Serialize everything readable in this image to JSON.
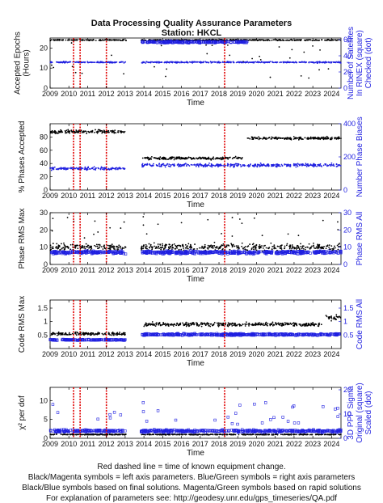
{
  "title_line1": "Data Processing Quality Assurance Parameters",
  "title_line2": "Station: HKCL",
  "footer": [
    "Red dashed line = time of known equipment change.",
    "Black/Magenta symbols = left axis parameters. Blue/Green symbols = right axis parameters",
    "Black/Blue symbols based on final solutions.  Magenta/Green symbols based on rapid solutions",
    "For explanation of parameters see: http://geodesy.unr.edu/gps_timeseries/QA.pdf"
  ],
  "colors": {
    "left": "#000000",
    "right": "#1f1fe0",
    "equipment_change": "#e00000"
  },
  "equipment_changes": [
    2010.25,
    2010.6,
    2012.0,
    2018.3
  ],
  "chart_data": [
    {
      "type": "scatter",
      "xlabel": "Time",
      "xlim": [
        2009,
        2024.5
      ],
      "xticks": [
        2009,
        2010,
        2011,
        2012,
        2013,
        2014,
        2015,
        2016,
        2017,
        2018,
        2019,
        2020,
        2021,
        2022,
        2023,
        2024
      ],
      "ylabel_left": [
        "Accepted Epochs",
        "(Hours)"
      ],
      "ylim_left": [
        0,
        25
      ],
      "yticks_left": [
        0,
        10,
        20
      ],
      "ylabel_right": [
        "Number of Satellites",
        "In RINEX (square)",
        "Checked (dot)"
      ],
      "ylim_right": [
        0,
        62
      ],
      "yticks_right": [
        0,
        20,
        40,
        60
      ],
      "series": [
        {
          "axis": "left",
          "level": 24,
          "spread": 0.4,
          "outliers": "low",
          "outlier_range": [
            5,
            23
          ]
        },
        {
          "axis": "right",
          "level": 32,
          "spread": 1.2
        },
        {
          "axis": "right",
          "level": 57,
          "spread": 1.5,
          "marker": "square",
          "start": 2013.8,
          "end": 2019.5
        }
      ]
    },
    {
      "type": "scatter",
      "xlabel": "Time",
      "xlim": [
        2009,
        2024.5
      ],
      "xticks": [
        2009,
        2010,
        2011,
        2012,
        2013,
        2014,
        2015,
        2016,
        2017,
        2018,
        2019,
        2020,
        2021,
        2022,
        2023,
        2024
      ],
      "ylabel_left": [
        "% Phases Accepted"
      ],
      "ylim_left": [
        0,
        100
      ],
      "yticks_left": [
        0,
        20,
        40,
        60,
        80
      ],
      "ylabel_right": [
        "Number Phase Biases"
      ],
      "ylim_right": [
        0,
        400
      ],
      "yticks_right": [
        0,
        200,
        400
      ],
      "series": [
        {
          "axis": "left",
          "level": 88,
          "spread": 4,
          "start": 2009,
          "end": 2013
        },
        {
          "axis": "left",
          "level": 48,
          "spread": 3,
          "start": 2013.9,
          "end": 2019.3
        },
        {
          "axis": "left",
          "level": 78,
          "spread": 3,
          "start": 2019.5,
          "end": 2024.5
        },
        {
          "axis": "right",
          "level": 130,
          "spread": 12,
          "start": 2009,
          "end": 2013
        },
        {
          "axis": "right",
          "level": 150,
          "spread": 15,
          "start": 2013.9,
          "end": 2024.5
        }
      ]
    },
    {
      "type": "scatter",
      "xlabel": "Time",
      "xlim": [
        2009,
        2024.5
      ],
      "xticks": [
        2009,
        2010,
        2011,
        2012,
        2013,
        2014,
        2015,
        2016,
        2017,
        2018,
        2019,
        2020,
        2021,
        2022,
        2023,
        2024
      ],
      "ylabel_left": [
        "Phase RMS Max"
      ],
      "ylim_left": [
        0,
        30
      ],
      "yticks_left": [
        0,
        10,
        20,
        30
      ],
      "ylabel_right": [
        "Phase RMS All"
      ],
      "ylim_right": [
        0,
        30
      ],
      "yticks_right": [
        0,
        10,
        20,
        30
      ],
      "series": [
        {
          "axis": "left",
          "level": 10,
          "spread": 3,
          "outliers": "high",
          "outlier_range": [
            15,
            28
          ]
        },
        {
          "axis": "right",
          "level": 7,
          "spread": 1.2,
          "marker": "square"
        }
      ]
    },
    {
      "type": "scatter",
      "xlabel": "Time",
      "xlim": [
        2009,
        2024.5
      ],
      "xticks": [
        2009,
        2010,
        2011,
        2012,
        2013,
        2014,
        2015,
        2016,
        2017,
        2018,
        2019,
        2020,
        2021,
        2022,
        2023,
        2024
      ],
      "ylabel_left": [
        "Code RMS Max"
      ],
      "ylim_left": [
        0,
        1.8
      ],
      "yticks_left": [
        0.5,
        1,
        1.5
      ],
      "ylabel_right": [
        "Code RMS All"
      ],
      "ylim_right": [
        0,
        1.8
      ],
      "yticks_right": [
        0.5,
        1,
        1.5
      ],
      "series": [
        {
          "axis": "left",
          "level": 0.55,
          "spread": 0.08,
          "start": 2009,
          "end": 2013
        },
        {
          "axis": "left",
          "level": 0.9,
          "spread": 0.1,
          "start": 2013.9,
          "end": 2023.5
        },
        {
          "axis": "left",
          "level": 1.15,
          "spread": 0.15,
          "start": 2023.7,
          "end": 2024.5
        },
        {
          "axis": "right",
          "level": 0.32,
          "spread": 0.03,
          "marker": "square",
          "start": 2009,
          "end": 2013
        },
        {
          "axis": "right",
          "level": 0.52,
          "spread": 0.05,
          "marker": "square",
          "start": 2013.9,
          "end": 2024.5
        }
      ]
    },
    {
      "type": "scatter",
      "xlabel": "Time",
      "xlim": [
        2009,
        2024.5
      ],
      "xticks": [
        2009,
        2010,
        2011,
        2012,
        2013,
        2014,
        2015,
        2016,
        2017,
        2018,
        2019,
        2020,
        2021,
        2022,
        2023,
        2024
      ],
      "ylabel_left": [
        "χ² per dof"
      ],
      "ylim_left": [
        0,
        13.5
      ],
      "yticks_left": [
        0,
        5,
        10
      ],
      "ylabel_right": [
        "3D PPP Sigma",
        "Original (square)",
        "Scaled (dot)"
      ],
      "ylim_right": [
        0,
        21
      ],
      "yticks_right": [
        0,
        10,
        20
      ],
      "series": [
        {
          "axis": "left",
          "level": 1.0,
          "spread": 0.15
        },
        {
          "axis": "right",
          "level": 3,
          "spread": 0.8,
          "marker": "square",
          "outliers": "high",
          "outlier_range": [
            5,
            15
          ]
        }
      ]
    }
  ]
}
